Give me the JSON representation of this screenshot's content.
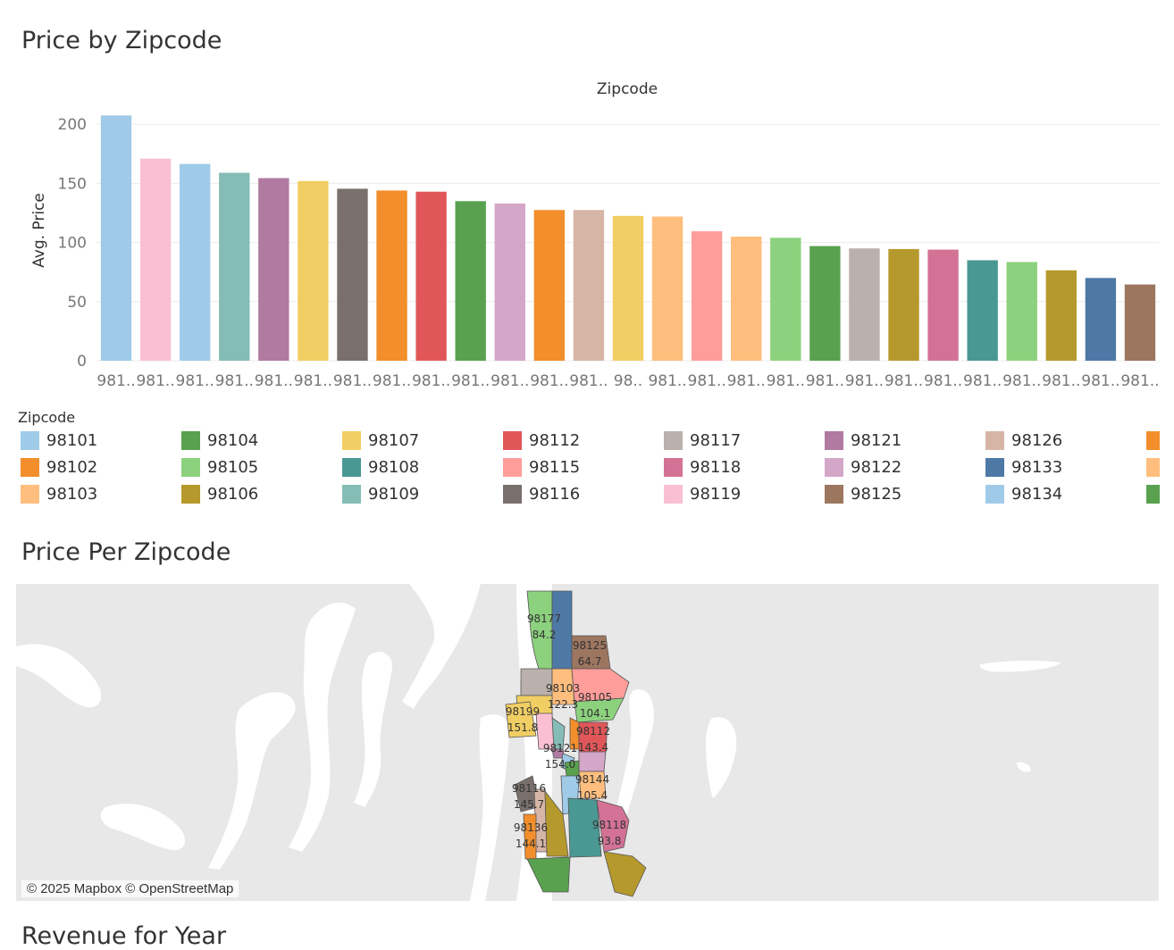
{
  "sheets": {
    "price_by_zipcode": "Price by Zipcode",
    "price_per_zipcode": "Price Per Zipcode",
    "revenue_for_year": "Revenue for Year"
  },
  "chart_data": {
    "type": "bar",
    "title": "Zipcode",
    "xlabel": "",
    "ylabel": "Avg. Price",
    "ylim": [
      0,
      210
    ],
    "yticks": [
      0,
      50,
      100,
      150,
      200
    ],
    "grid": true,
    "categories": [
      "981..",
      "981..",
      "981..",
      "981..",
      "981..",
      "981..",
      "981..",
      "981..",
      "981..",
      "981..",
      "981..",
      "981..",
      "981..",
      "98..",
      "981..",
      "981..",
      "981..",
      "981..",
      "981..",
      "981..",
      "981..",
      "981..",
      "981..",
      "981..",
      "981..",
      "981..",
      "981.."
    ],
    "values": [
      207.5,
      171,
      166.5,
      159,
      154.5,
      152,
      145.5,
      144,
      143,
      135,
      133,
      127.5,
      127.5,
      122.5,
      122,
      109.5,
      105,
      104,
      97,
      95,
      94.5,
      94,
      85,
      83.5,
      76.5,
      70,
      64.5
    ],
    "colors": [
      "#a0cbe8",
      "#fabfd2",
      "#a0cbe8",
      "#86bcb6",
      "#b07aa1",
      "#f1ce63",
      "#79706e",
      "#f28e2b",
      "#e15759",
      "#59a14f",
      "#d4a6c8",
      "#f28e2b",
      "#d7b5a6",
      "#f1ce63",
      "#ffbe7d",
      "#ff9d9a",
      "#ffbe7d",
      "#8cd17d",
      "#59a14f",
      "#bab0ac",
      "#b6992d",
      "#d37295",
      "#499894",
      "#8cd17d",
      "#b6992d",
      "#4e79a7",
      "#9d7660"
    ]
  },
  "legend": {
    "title": "Zipcode",
    "items": [
      {
        "label": "98101",
        "color": "#a0cbe8"
      },
      {
        "label": "98102",
        "color": "#f28e2b"
      },
      {
        "label": "98103",
        "color": "#ffbe7d"
      },
      {
        "label": "98104",
        "color": "#59a14f"
      },
      {
        "label": "98105",
        "color": "#8cd17d"
      },
      {
        "label": "98106",
        "color": "#b6992d"
      },
      {
        "label": "98107",
        "color": "#f1ce63"
      },
      {
        "label": "98108",
        "color": "#499894"
      },
      {
        "label": "98109",
        "color": "#86bcb6"
      },
      {
        "label": "98112",
        "color": "#e15759"
      },
      {
        "label": "98115",
        "color": "#ff9d9a"
      },
      {
        "label": "98116",
        "color": "#79706e"
      },
      {
        "label": "98117",
        "color": "#bab0ac"
      },
      {
        "label": "98118",
        "color": "#d37295"
      },
      {
        "label": "98119",
        "color": "#fabfd2"
      },
      {
        "label": "98121",
        "color": "#b07aa1"
      },
      {
        "label": "98122",
        "color": "#d4a6c8"
      },
      {
        "label": "98125",
        "color": "#9d7660"
      },
      {
        "label": "98126",
        "color": "#d7b5a6"
      },
      {
        "label": "98133",
        "color": "#4e79a7"
      },
      {
        "label": "98134",
        "color": "#a0cbe8"
      },
      {
        "label": "",
        "color": "#f28e2b"
      },
      {
        "label": "",
        "color": "#ffbe7d"
      },
      {
        "label": "",
        "color": "#59a14f"
      }
    ]
  },
  "map": {
    "attribution": "© 2025 Mapbox © OpenStreetMap",
    "labels": [
      {
        "zip": "98177",
        "value": "84.2"
      },
      {
        "zip": "98125",
        "value": "64.7"
      },
      {
        "zip": "98103",
        "value": "122.3"
      },
      {
        "zip": "98105",
        "value": "104.1"
      },
      {
        "zip": "98199",
        "value": "151.8"
      },
      {
        "zip": "98112",
        "value": "143.4"
      },
      {
        "zip": "98121",
        "value": "154.0"
      },
      {
        "zip": "98144",
        "value": "105.4"
      },
      {
        "zip": "98116",
        "value": "145.7"
      },
      {
        "zip": "98118",
        "value": "93.8"
      },
      {
        "zip": "98136",
        "value": "144.1"
      }
    ]
  }
}
